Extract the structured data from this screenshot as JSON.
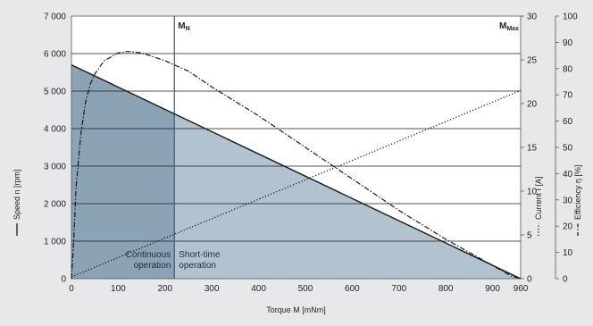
{
  "chart_data": {
    "type": "line",
    "xlabel": "Torque M [mNm]",
    "x_ticks": [
      "0",
      "100",
      "200",
      "300",
      "400",
      "500",
      "600",
      "700",
      "800",
      "900",
      "960"
    ],
    "xlim": [
      0,
      960
    ],
    "axes": {
      "speed": {
        "label": "Speed n [rpm]",
        "ylim": [
          0,
          7000
        ],
        "ticks": [
          "0",
          "1 000",
          "2 000",
          "3 000",
          "4 000",
          "5 000",
          "6 000",
          "7 000"
        ]
      },
      "current": {
        "label": "Current I [A]",
        "ylim": [
          0,
          30
        ],
        "ticks": [
          "0",
          "5",
          "10",
          "15",
          "20",
          "25",
          "30"
        ]
      },
      "efficiency": {
        "label": "Efficiency η [%]",
        "ylim": [
          0,
          100
        ],
        "ticks": [
          "0",
          "10",
          "20",
          "30",
          "40",
          "50",
          "60",
          "70",
          "80",
          "90",
          "100"
        ]
      }
    },
    "series": [
      {
        "name": "Speed n [rpm]",
        "axis": "speed",
        "style": "solid",
        "x": [
          0,
          960
        ],
        "y": [
          5700,
          0
        ]
      },
      {
        "name": "Current I [A]",
        "axis": "current",
        "style": "dotted",
        "x": [
          0,
          960
        ],
        "y": [
          0.2,
          21.5
        ]
      },
      {
        "name": "Efficiency η [%]",
        "axis": "efficiency",
        "style": "dashdot",
        "x": [
          0,
          5,
          10,
          20,
          30,
          40,
          50,
          70,
          100,
          120,
          150,
          200,
          250,
          300,
          400,
          500,
          600,
          700,
          800,
          900,
          940,
          960
        ],
        "y": [
          0,
          15,
          35,
          55,
          67,
          74,
          78,
          83,
          86,
          86.5,
          86,
          83,
          79,
          73,
          62,
          50,
          38,
          26,
          15,
          5,
          1,
          0
        ]
      }
    ],
    "regions": [
      {
        "label_lines": [
          "Continuous",
          "operation"
        ],
        "x_range": [
          0,
          220
        ],
        "color": "#8ca2b5"
      },
      {
        "label_lines": [
          "Short-time",
          "operation"
        ],
        "x_range": [
          220,
          960
        ],
        "color": "#b3c2cf"
      }
    ],
    "markers": [
      {
        "label": "M",
        "sub": "N",
        "x": 220
      },
      {
        "label": "M",
        "sub": "Max",
        "x": 960
      }
    ],
    "grid": "horizontal",
    "colors": {
      "background": "#e7e8ea",
      "plot": "#ffffff",
      "continuous": "#8ca2b5",
      "short_time": "#b3c2cf",
      "line": "#1a1a1a",
      "marker": "#3e5a72"
    }
  }
}
